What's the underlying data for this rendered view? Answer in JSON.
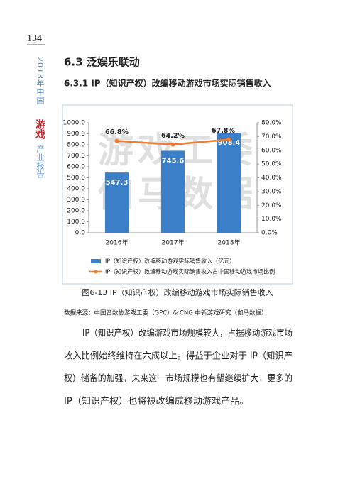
{
  "page_number": "134",
  "sidebar": [
    "2018年中国",
    "游戏",
    "产业报告"
  ],
  "section_title": "6.3 泛娱乐联动",
  "subsection_title": "6.3.1 IP（知识产权）改编移动游戏市场实际销售收入",
  "chart_data": {
    "type": "bar",
    "watermark": [
      "游戏工委",
      "伽马数据"
    ],
    "categories": [
      "2016年",
      "2017年",
      "2018年"
    ],
    "series": [
      {
        "name": "IP（知识产权）改编移动游戏实际销售收入（亿元）",
        "color": "#3a7fc8",
        "values": [
          547.3,
          745.6,
          908.4
        ]
      },
      {
        "name": "IP（知识产权）改编移动游戏实际销售收入占中国移动游戏市场比例",
        "color": "#ed7d31",
        "axis": "y2",
        "type": "line",
        "values": [
          66.8,
          64.2,
          67.8
        ],
        "value_labels": [
          "66.8%",
          "64.2%",
          "67.8%"
        ]
      }
    ],
    "ylim": [
      0,
      1000
    ],
    "yticks": [
      {
        "value": 0,
        "label": "0.0"
      },
      {
        "value": 100,
        "label": "100.0"
      },
      {
        "value": 200,
        "label": "200.0"
      },
      {
        "value": 300,
        "label": "300.0"
      },
      {
        "value": 400,
        "label": "400.0"
      },
      {
        "value": 500,
        "label": "500.0"
      },
      {
        "value": 600,
        "label": "600.0"
      },
      {
        "value": 700,
        "label": "700.0"
      },
      {
        "value": 800,
        "label": "800.0"
      },
      {
        "value": 900,
        "label": "900.0"
      },
      {
        "value": 1000,
        "label": "1000.0"
      }
    ],
    "y2lim": [
      0,
      80
    ],
    "y2ticks": [
      {
        "value": 0,
        "label": "0.0%"
      },
      {
        "value": 10,
        "label": "10.0%"
      },
      {
        "value": 20,
        "label": "20.0%"
      },
      {
        "value": 30,
        "label": "30.0%"
      },
      {
        "value": 40,
        "label": "40.0%"
      },
      {
        "value": 50,
        "label": "50.0%"
      },
      {
        "value": 60,
        "label": "60.0%"
      },
      {
        "value": 70,
        "label": "70.0%"
      },
      {
        "value": 80,
        "label": "80.0%"
      }
    ],
    "grid": false
  },
  "figure_caption": "图6-13 IP（知识产权）改编移动游戏市场实际销售收入",
  "source": "数据来源：中国音数协游戏工委（GPC）& CNG 中新游戏研究（伽马数据）",
  "paragraph": [
    "IP（知识产权）改编游戏市场规模较大，占据移动游戏市场",
    "收入比例始终维持在六成以上。得益于企业对于 IP（知识产",
    "权）储备的加强，未来这一市场规模也有望继续扩大，更多的",
    "IP（知识产权）也将被改编成移动游戏产品。"
  ]
}
